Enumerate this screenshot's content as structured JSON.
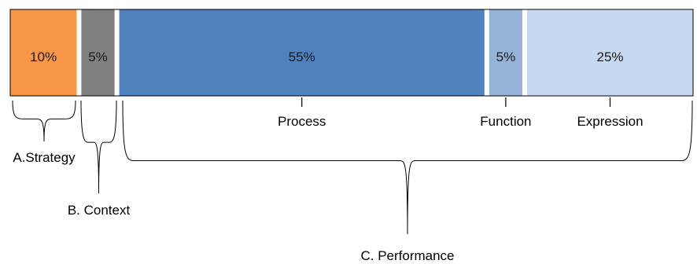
{
  "chart_data": {
    "type": "bar",
    "orientation": "horizontal-stacked",
    "title": "",
    "segments": [
      {
        "value": 10,
        "label": "10%",
        "color": "#F79646"
      },
      {
        "value": 5,
        "label": "5%",
        "color": "#808080"
      },
      {
        "value": 55,
        "label": "55%",
        "color": "#4F81BD",
        "category": "Process"
      },
      {
        "value": 5,
        "label": "5%",
        "color": "#95B3D7",
        "category": "Function"
      },
      {
        "value": 25,
        "label": "25%",
        "color": "#C6D9F1",
        "category": "Expression"
      }
    ],
    "groups": [
      {
        "name": "A.Strategy",
        "segments": [
          0
        ]
      },
      {
        "name": "B. Context",
        "segments": [
          1
        ]
      },
      {
        "name": "C. Performance",
        "segments": [
          2,
          3,
          4
        ]
      }
    ],
    "total": 100
  }
}
